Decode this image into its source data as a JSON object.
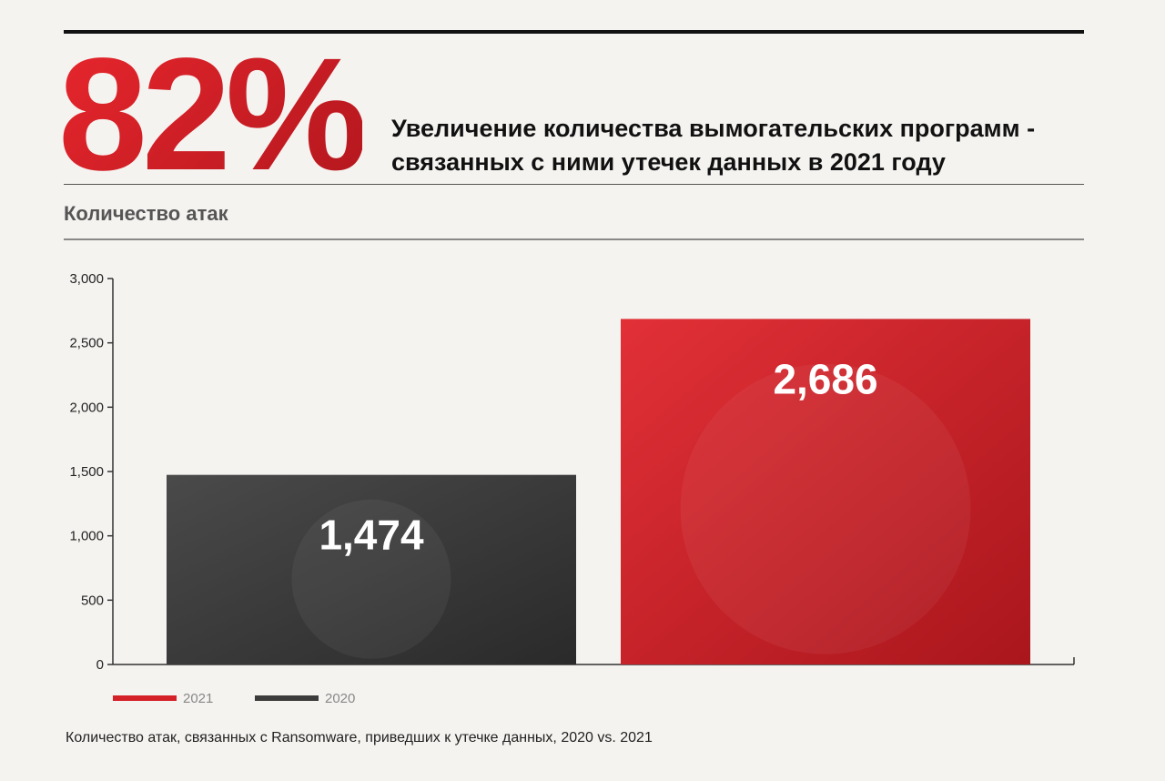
{
  "header": {
    "big_stat": "82%",
    "headline_line1": "Увеличение количества вымогательских программ -",
    "headline_line2": "связанных с ними утечек данных в 2021 году",
    "subheading": "Количество атак"
  },
  "caption": "Количество атак, связанных с Ransomware, приведших к утечке данных, 2020 vs. 2021",
  "colors": {
    "accent": "#d42027",
    "dark": "#3b3b3b",
    "background": "#f5f3f0"
  },
  "chart_data": {
    "type": "bar",
    "categories": [
      "2020",
      "2021"
    ],
    "values": [
      1474,
      2686
    ],
    "value_labels": [
      "1,474",
      "2,686"
    ],
    "bar_colors": [
      "#3b3b3b",
      "#d42027"
    ],
    "ylim": [
      0,
      3000
    ],
    "yticks": [
      0,
      500,
      1000,
      1500,
      2000,
      2500,
      3000
    ],
    "ytick_labels": [
      "0",
      "500",
      "1,000",
      "1,500",
      "2,000",
      "2,500",
      "3,000"
    ],
    "legend": [
      {
        "label": "2021",
        "color": "#d42027"
      },
      {
        "label": "2020",
        "color": "#3b3b3b"
      }
    ],
    "legend_position": "bottom-left",
    "grid": false
  }
}
